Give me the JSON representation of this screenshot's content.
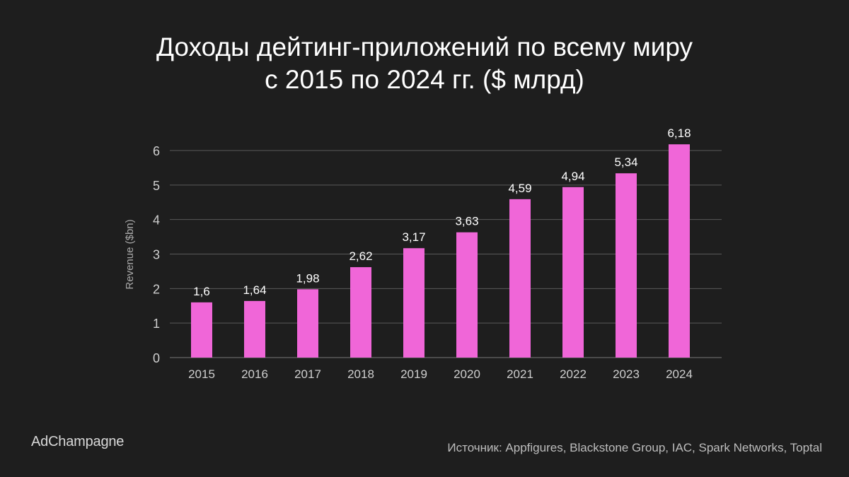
{
  "title_line1": "Доходы дейтинг-приложений по всему миру",
  "title_line2": "с 2015 по 2024 гг. ($ млрд)",
  "brand": "AdChampagne",
  "source": "Источник: Appfigures, Blackstone Group, IAC, Spark Networks, Toptal",
  "colors": {
    "bar": "#f066d8",
    "background": "#1e1e1e",
    "grid": "#5a5a5a"
  },
  "chart_data": {
    "type": "bar",
    "title": "Доходы дейтинг-приложений по всему миру с 2015 по 2024 гг. ($ млрд)",
    "categories": [
      "2015",
      "2016",
      "2017",
      "2018",
      "2019",
      "2020",
      "2021",
      "2022",
      "2023",
      "2024"
    ],
    "values": [
      1.6,
      1.64,
      1.98,
      2.62,
      3.17,
      3.63,
      4.59,
      4.94,
      5.34,
      6.18
    ],
    "data_labels": [
      "1,6",
      "1,64",
      "1,98",
      "2,62",
      "3,17",
      "3,63",
      "4,59",
      "4,94",
      "5,34",
      "6,18"
    ],
    "ylabel": "Revenue ($bn)",
    "xlabel": "",
    "ylim": [
      0,
      6
    ],
    "yticks": [
      0,
      1,
      2,
      3,
      4,
      5,
      6
    ],
    "grid": true
  }
}
